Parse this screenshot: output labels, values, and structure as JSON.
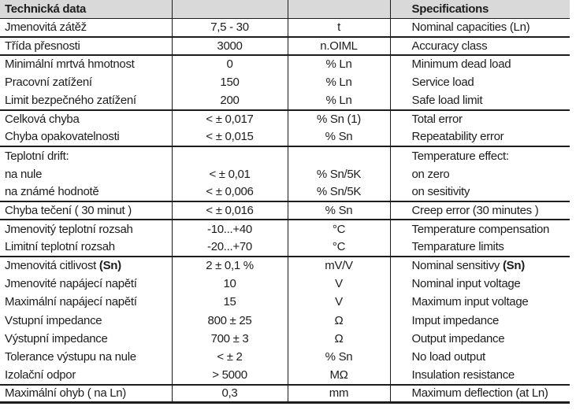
{
  "table": {
    "header": {
      "czech_title": "Technická data",
      "english_title": "Specifications"
    },
    "colors": {
      "header_bg": "#d9d9d9",
      "rule": "#1c1c1c",
      "text": "#1d1d1d",
      "page_bg": "#ffffff"
    },
    "rows": [
      {
        "cz": "Jmenovitá zátěž",
        "value": "7,5 - 30",
        "unit": "t",
        "en": "Nominal capacities (Ln)",
        "group_end": true,
        "table_end": false
      },
      {
        "cz": "Třída přesnosti",
        "value": "3000",
        "unit": "n.OIML",
        "en": "Accuracy class",
        "group_end": true,
        "table_end": false
      },
      {
        "cz": "Minimální mrtvá hmotnost",
        "value": "0",
        "unit": "% Ln",
        "en": "Minimum dead load",
        "group_end": false,
        "table_end": false
      },
      {
        "cz": "Pracovní zatížení",
        "value": "150",
        "unit": "% Ln",
        "en": "Service load",
        "group_end": false,
        "table_end": false
      },
      {
        "cz": "Limit bezpečného zatížení",
        "value": "200",
        "unit": "% Ln",
        "en": "Safe load limit",
        "group_end": true,
        "table_end": false
      },
      {
        "cz": "Celková chyba",
        "value": "< ± 0,017",
        "unit": "% Sn (1)",
        "en": "Total error",
        "group_end": false,
        "table_end": false
      },
      {
        "cz": "Chyba opakovatelnosti",
        "value": "< ± 0,015",
        "unit": "% Sn",
        "en": "Repeatability error",
        "group_end": true,
        "table_end": false
      },
      {
        "cz": "Teplotní drift:",
        "value": "",
        "unit": "",
        "en": "Temperature effect:",
        "group_end": false,
        "table_end": false
      },
      {
        "cz": "na nule",
        "value": "< ± 0,01",
        "unit": "% Sn/5K",
        "en": "on zero",
        "group_end": false,
        "table_end": false
      },
      {
        "cz": "na známé hodnotě",
        "value": "< ± 0,006",
        "unit": "% Sn/5K",
        "en": "on sesitivity",
        "group_end": true,
        "table_end": false
      },
      {
        "cz": "Chyba tečení ( 30 minut )",
        "value": "< ± 0,016",
        "unit": "% Sn",
        "en": "Creep error (30 minutes )",
        "group_end": true,
        "table_end": false
      },
      {
        "cz": "Jmenovitý teplotní rozsah",
        "value": "-10...+40",
        "unit": "°C",
        "en": "Temperature compensation",
        "group_end": false,
        "table_end": false
      },
      {
        "cz": "Limitní teplotní rozsah",
        "value": "-20...+70",
        "unit": "°C",
        "en": "Temparature limits",
        "group_end": true,
        "table_end": false
      },
      {
        "cz": "Jmenovitá citlivost ",
        "cz_bold": "(Sn)",
        "value": "2 ± 0,1 %",
        "unit": "mV/V",
        "en": "Nominal sensitivy ",
        "en_bold": "(Sn)",
        "group_end": false,
        "table_end": false
      },
      {
        "cz": "Jmenovité napájecí napětí",
        "value": "10",
        "unit": "V",
        "en": "Nominal input voltage",
        "group_end": false,
        "table_end": false
      },
      {
        "cz": "Maximální napájecí napětí",
        "value": "15",
        "unit": "V",
        "en": "Maximum input voltage",
        "group_end": false,
        "table_end": false
      },
      {
        "cz": "Vstupní impedance",
        "value": "800 ± 25",
        "unit": "Ω",
        "en": "Imput impedance",
        "group_end": false,
        "table_end": false
      },
      {
        "cz": "Výstupní impedance",
        "value": "700 ± 3",
        "unit": "Ω",
        "en": "Output impedance",
        "group_end": false,
        "table_end": false
      },
      {
        "cz": "Tolerance výstupu na nule",
        "value": "< ± 2",
        "unit": "% Sn",
        "en": "No load output",
        "group_end": false,
        "table_end": false
      },
      {
        "cz": "Izolační odpor",
        "value": "> 5000",
        "unit": "MΩ",
        "en": "Insulation resistance",
        "group_end": true,
        "table_end": false
      },
      {
        "cz": "Maximální ohyb ( na Ln)",
        "value": "0,3",
        "unit": "mm",
        "en": "Maximum deflection (at Ln)",
        "group_end": false,
        "table_end": true
      }
    ]
  }
}
